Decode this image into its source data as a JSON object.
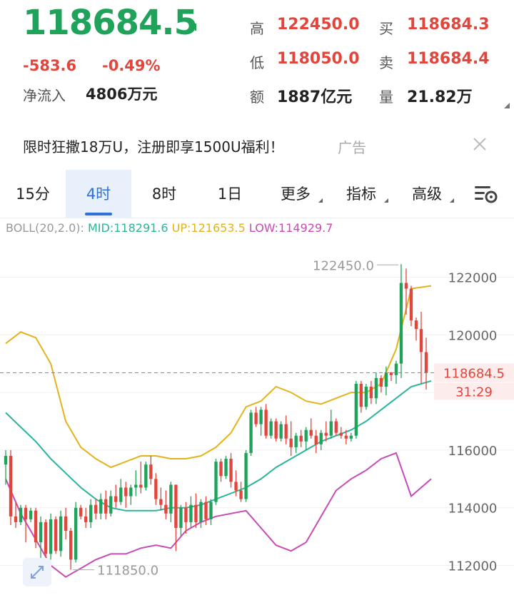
{
  "quote": {
    "last_price": "118684.5",
    "change": "-583.6",
    "change_pct": "-0.49%",
    "net_flow_label": "净流入",
    "net_flow_value": "4806万元",
    "stats": [
      {
        "label": "高",
        "value": "122450.0",
        "tone": "red"
      },
      {
        "label": "买",
        "value": "118684.3",
        "tone": "red"
      },
      {
        "label": "低",
        "value": "118050.0",
        "tone": "red"
      },
      {
        "label": "卖",
        "value": "118684.4",
        "tone": "red"
      },
      {
        "label": "额",
        "value": "1887亿元",
        "tone": "dark"
      },
      {
        "label": "量",
        "value": "21.82万",
        "tone": "dark"
      }
    ],
    "colors": {
      "up": "#e2453c",
      "down": "#1fa35a"
    }
  },
  "ad": {
    "text": "限时狂撒18万U，注册即享1500U福利！",
    "tag": "广告"
  },
  "tabs": [
    {
      "label": "15分",
      "active": false,
      "dropdown": false
    },
    {
      "label": "4时",
      "active": true,
      "dropdown": false
    },
    {
      "label": "8时",
      "active": false,
      "dropdown": false
    },
    {
      "label": "1日",
      "active": false,
      "dropdown": false
    },
    {
      "label": "更多",
      "active": false,
      "dropdown": true
    },
    {
      "label": "指标",
      "active": false,
      "dropdown": true
    },
    {
      "label": "高级",
      "active": false,
      "dropdown": true
    }
  ],
  "boll": {
    "label": "BOLL(20,2.0):",
    "mid": "MID:118291.6",
    "up": "UP:121653.5",
    "low": "LOW:114929.7"
  },
  "chart_data": {
    "type": "candlestick",
    "y_ticks": [
      112000,
      114000,
      116000,
      118000,
      120000,
      122000
    ],
    "y_tick_labels": [
      "112000",
      "114000",
      "116000",
      "118000",
      "120000",
      "122000"
    ],
    "ylim": [
      110800,
      123200
    ],
    "last_price": 118684.5,
    "last_price_label": "118684.5",
    "countdown": "31:29",
    "high_marker": {
      "index": 79,
      "value": 122450.0,
      "label": "122450.0"
    },
    "low_marker": {
      "index": 13,
      "value": 111850.0,
      "label": "111850.0"
    },
    "candles": [
      [
        115500,
        116000,
        114800,
        115800
      ],
      [
        115800,
        116000,
        113400,
        113700
      ],
      [
        113700,
        114200,
        113300,
        113500
      ],
      [
        113500,
        114100,
        113400,
        114000
      ],
      [
        114000,
        114100,
        112800,
        113600
      ],
      [
        113600,
        114000,
        113500,
        113900
      ],
      [
        113900,
        114000,
        112600,
        112800
      ],
      [
        112800,
        113700,
        112100,
        113500
      ],
      [
        113500,
        113600,
        112200,
        112400
      ],
      [
        112400,
        113800,
        112200,
        113600
      ],
      [
        113600,
        113700,
        112400,
        112500
      ],
      [
        112500,
        113900,
        112300,
        113700
      ],
      [
        113700,
        114000,
        112900,
        113200
      ],
      [
        113200,
        113300,
        111850,
        112200
      ],
      [
        112200,
        114200,
        112100,
        114000
      ],
      [
        114000,
        114100,
        113600,
        113700
      ],
      [
        113700,
        114000,
        113300,
        113500
      ],
      [
        113500,
        114300,
        113300,
        114100
      ],
      [
        114100,
        114300,
        113600,
        113800
      ],
      [
        113800,
        114500,
        113600,
        114300
      ],
      [
        114300,
        114600,
        113600,
        113800
      ],
      [
        113800,
        114600,
        113700,
        114400
      ],
      [
        114400,
        114800,
        114000,
        114200
      ],
      [
        114200,
        115000,
        114100,
        114700
      ],
      [
        114700,
        114900,
        114000,
        114400
      ],
      [
        114400,
        114800,
        114100,
        114700
      ],
      [
        114700,
        115300,
        114400,
        114800
      ],
      [
        114800,
        115600,
        114500,
        114700
      ],
      [
        114700,
        115600,
        114600,
        115500
      ],
      [
        115500,
        115800,
        114800,
        115000
      ],
      [
        115000,
        115200,
        114100,
        114300
      ],
      [
        114300,
        114700,
        113900,
        114100
      ],
      [
        114100,
        114600,
        113600,
        113800
      ],
      [
        113800,
        114900,
        113500,
        114800
      ],
      [
        114800,
        114800,
        112500,
        113300
      ],
      [
        113300,
        114100,
        113000,
        114000
      ],
      [
        114000,
        114200,
        113100,
        113500
      ],
      [
        113500,
        114400,
        113300,
        114100
      ],
      [
        114100,
        114500,
        113300,
        113500
      ],
      [
        113500,
        114300,
        113300,
        114200
      ],
      [
        114200,
        114400,
        113400,
        113600
      ],
      [
        113600,
        114300,
        113400,
        114200
      ],
      [
        114200,
        115700,
        114100,
        115600
      ],
      [
        115600,
        115700,
        114900,
        115100
      ],
      [
        115100,
        115800,
        115000,
        115700
      ],
      [
        115700,
        115900,
        114700,
        114900
      ],
      [
        114900,
        115300,
        114400,
        114600
      ],
      [
        114600,
        114900,
        114200,
        114300
      ],
      [
        114300,
        116000,
        114200,
        115900
      ],
      [
        115900,
        117400,
        115800,
        117300
      ],
      [
        117300,
        117500,
        116800,
        116900
      ],
      [
        116900,
        117500,
        116500,
        117400
      ],
      [
        117400,
        117600,
        116400,
        116500
      ],
      [
        116500,
        117100,
        116400,
        117000
      ],
      [
        117000,
        117100,
        116300,
        116400
      ],
      [
        116400,
        117000,
        116300,
        116900
      ],
      [
        116900,
        117200,
        116200,
        116400
      ],
      [
        116400,
        117000,
        115800,
        116100
      ],
      [
        116100,
        116600,
        115900,
        116500
      ],
      [
        116500,
        116700,
        116100,
        116300
      ],
      [
        116300,
        116800,
        116000,
        116700
      ],
      [
        116700,
        117100,
        116400,
        116500
      ],
      [
        116500,
        116700,
        115900,
        116200
      ],
      [
        116200,
        116700,
        116000,
        116600
      ],
      [
        116600,
        117000,
        116300,
        116500
      ],
      [
        116500,
        117400,
        116400,
        117000
      ],
      [
        117000,
        117100,
        116500,
        116600
      ],
      [
        116600,
        116800,
        116400,
        116500
      ],
      [
        116500,
        116700,
        116200,
        116400
      ],
      [
        116400,
        116600,
        116300,
        116500
      ],
      [
        116500,
        118400,
        116400,
        118300
      ],
      [
        118300,
        118400,
        117300,
        117500
      ],
      [
        117500,
        118300,
        117400,
        118200
      ],
      [
        118200,
        118400,
        117600,
        117800
      ],
      [
        117800,
        118700,
        117600,
        118500
      ],
      [
        118500,
        118600,
        118000,
        118200
      ],
      [
        118200,
        118900,
        117900,
        118700
      ],
      [
        118700,
        118700,
        118400,
        118600
      ],
      [
        118600,
        119100,
        118300,
        119000
      ],
      [
        119000,
        122450,
        118500,
        121800
      ],
      [
        121800,
        122300,
        120700,
        121600
      ],
      [
        121600,
        121700,
        120300,
        120500
      ],
      [
        120500,
        120600,
        119800,
        120200
      ],
      [
        120200,
        120800,
        118300,
        119400
      ],
      [
        119400,
        119900,
        118100,
        118685
      ]
    ],
    "boll_mid": [
      [
        0,
        117300
      ],
      [
        3,
        116800
      ],
      [
        6,
        116300
      ],
      [
        9,
        115700
      ],
      [
        12,
        115200
      ],
      [
        15,
        114700
      ],
      [
        18,
        114300
      ],
      [
        21,
        114000
      ],
      [
        24,
        113900
      ],
      [
        27,
        113900
      ],
      [
        30,
        113900
      ],
      [
        33,
        114000
      ],
      [
        36,
        114000
      ],
      [
        39,
        114100
      ],
      [
        42,
        114300
      ],
      [
        45,
        114500
      ],
      [
        48,
        114700
      ],
      [
        51,
        115000
      ],
      [
        54,
        115400
      ],
      [
        57,
        115700
      ],
      [
        60,
        116000
      ],
      [
        63,
        116300
      ],
      [
        66,
        116500
      ],
      [
        69,
        116700
      ],
      [
        72,
        117000
      ],
      [
        75,
        117400
      ],
      [
        78,
        117800
      ],
      [
        81,
        118200
      ],
      [
        85,
        118400
      ]
    ],
    "boll_upper": [
      [
        0,
        119700
      ],
      [
        3,
        120100
      ],
      [
        6,
        119900
      ],
      [
        9,
        119000
      ],
      [
        12,
        117000
      ],
      [
        15,
        116100
      ],
      [
        18,
        115700
      ],
      [
        21,
        115400
      ],
      [
        24,
        115600
      ],
      [
        27,
        115800
      ],
      [
        30,
        115800
      ],
      [
        33,
        115700
      ],
      [
        36,
        115700
      ],
      [
        39,
        115800
      ],
      [
        42,
        116100
      ],
      [
        45,
        116600
      ],
      [
        48,
        117500
      ],
      [
        51,
        117700
      ],
      [
        54,
        118200
      ],
      [
        57,
        118000
      ],
      [
        60,
        117700
      ],
      [
        63,
        117600
      ],
      [
        66,
        117800
      ],
      [
        69,
        118000
      ],
      [
        72,
        118000
      ],
      [
        75,
        118300
      ],
      [
        78,
        119500
      ],
      [
        81,
        121600
      ],
      [
        85,
        121700
      ]
    ],
    "boll_lower": [
      [
        0,
        115000
      ],
      [
        3,
        113800
      ],
      [
        6,
        112900
      ],
      [
        9,
        112000
      ],
      [
        12,
        111600
      ],
      [
        15,
        111900
      ],
      [
        18,
        112200
      ],
      [
        21,
        112400
      ],
      [
        24,
        112400
      ],
      [
        27,
        112600
      ],
      [
        30,
        112700
      ],
      [
        33,
        112600
      ],
      [
        36,
        113200
      ],
      [
        39,
        113500
      ],
      [
        42,
        113700
      ],
      [
        45,
        113800
      ],
      [
        48,
        113900
      ],
      [
        51,
        113300
      ],
      [
        54,
        112700
      ],
      [
        57,
        112500
      ],
      [
        60,
        112800
      ],
      [
        63,
        113700
      ],
      [
        66,
        114600
      ],
      [
        69,
        115000
      ],
      [
        72,
        115300
      ],
      [
        75,
        115700
      ],
      [
        78,
        115900
      ],
      [
        81,
        114400
      ],
      [
        85,
        115000
      ]
    ]
  }
}
